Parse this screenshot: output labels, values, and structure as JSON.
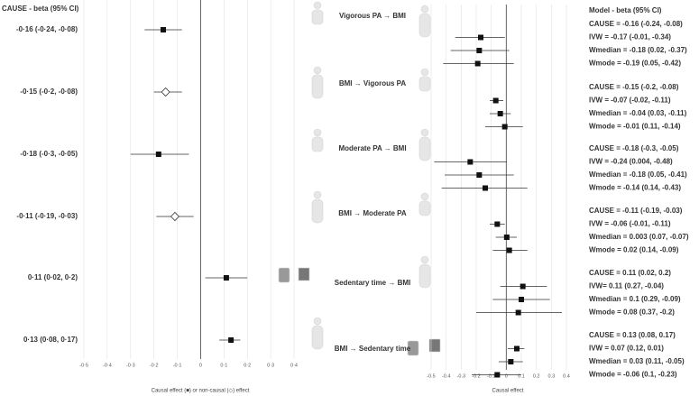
{
  "chart_data": [
    {
      "type": "forest",
      "title": "CAUSE - beta (95% CI)",
      "xlabel": "Causal effect (■) or non-causal (◇) effect",
      "xlim": [
        -0.5,
        0.4
      ],
      "xticks": [
        {
          "value": -0.5,
          "label": "-0·5"
        },
        {
          "value": -0.4,
          "label": "-0·4"
        },
        {
          "value": -0.3,
          "label": "-0·3"
        },
        {
          "value": -0.2,
          "label": "-0·2"
        },
        {
          "value": -0.1,
          "label": "-0·1"
        },
        0,
        {
          "value": 0.1,
          "label": "0·1"
        },
        {
          "value": 0.2,
          "label": "0·2"
        },
        {
          "value": 0.3,
          "label": "0·3"
        },
        {
          "value": 0.4,
          "label": "0·4"
        }
      ],
      "rows": [
        {
          "label": "-0·16 (-0·24, -0·08)",
          "estimate": -0.16,
          "ci": [
            -0.24,
            -0.08
          ],
          "causal": true
        },
        {
          "label": "-0·15 (-0·2, -0·08)",
          "estimate": -0.15,
          "ci": [
            -0.2,
            -0.08
          ],
          "causal": false
        },
        {
          "label": "-0·18 (-0·3, -0·05)",
          "estimate": -0.18,
          "ci": [
            -0.3,
            -0.05
          ],
          "causal": true
        },
        {
          "label": "-0·11 (-0·19, -0·03)",
          "estimate": -0.11,
          "ci": [
            -0.19,
            -0.03
          ],
          "causal": false
        },
        {
          "label": "0·11 (0·02, 0·2)",
          "estimate": 0.11,
          "ci": [
            0.02,
            0.2
          ],
          "causal": true
        },
        {
          "label": "0·13 (0·08, 0·17)",
          "estimate": 0.13,
          "ci": [
            0.08,
            0.17
          ],
          "causal": true
        }
      ]
    },
    {
      "type": "forest-grouped",
      "title": "Model - beta (95% CI)",
      "xlabel": "Causal effect",
      "xlim": [
        -0.5,
        0.4
      ],
      "xticks": [
        -0.5,
        -0.4,
        -0.3,
        -0.2,
        -0.1,
        0,
        0.1,
        0.2,
        0.3,
        0.4
      ],
      "groups": [
        {
          "name": "Vigorous PA → BMI",
          "cause_label": "CAUSE = -0.16 (-0.24, -0.08)",
          "rows": [
            {
              "label": "IVW = -0.17 (-0.01, -0.34)",
              "estimate": -0.17,
              "ci": [
                -0.01,
                -0.34
              ]
            },
            {
              "label": "Wmedian = -0.18 (0.02, -0.37)",
              "estimate": -0.18,
              "ci": [
                0.02,
                -0.37
              ]
            },
            {
              "label": "Wmode = -0.19 (0.05, -0.42)",
              "estimate": -0.19,
              "ci": [
                0.05,
                -0.42
              ]
            }
          ]
        },
        {
          "name": "BMI  → Vigorous PA",
          "cause_label": "CAUSE = -0.15 (-0.2, -0.08)",
          "rows": [
            {
              "label": "IVW = -0.07 (-0.02, -0.11)",
              "estimate": -0.07,
              "ci": [
                -0.02,
                -0.11
              ]
            },
            {
              "label": "Wmedian = -0.04 (0.03, -0.11)",
              "estimate": -0.04,
              "ci": [
                0.03,
                -0.11
              ]
            },
            {
              "label": "Wmode = -0.01 (0.11, -0.14)",
              "estimate": -0.01,
              "ci": [
                0.11,
                -0.14
              ]
            }
          ]
        },
        {
          "name": "Moderate PA → BMI",
          "cause_label": "CAUSE = -0.18 (-0.3, -0.05)",
          "rows": [
            {
              "label": "IVW = -0.24 (0.004, -0.48)",
              "estimate": -0.24,
              "ci": [
                0.004,
                -0.48
              ]
            },
            {
              "label": "Wmedian = -0.18 (0.05, -0.41)",
              "estimate": -0.18,
              "ci": [
                0.05,
                -0.41
              ]
            },
            {
              "label": "Wmode = -0.14 (0.14, -0.43)",
              "estimate": -0.14,
              "ci": [
                0.14,
                -0.43
              ]
            }
          ]
        },
        {
          "name": "BMI → Moderate PA",
          "cause_label": "CAUSE = -0.11 (-0.19, -0.03)",
          "rows": [
            {
              "label": "IVW = -0.06 (-0.01, -0.11)",
              "estimate": -0.06,
              "ci": [
                -0.01,
                -0.11
              ]
            },
            {
              "label": "Wmedian = 0.003 (0.07, -0.07)",
              "estimate": 0.003,
              "ci": [
                0.07,
                -0.07
              ]
            },
            {
              "label": "Wmode = 0.02 (0.14, -0.09)",
              "estimate": 0.02,
              "ci": [
                0.14,
                -0.09
              ]
            }
          ]
        },
        {
          "name": "Sedentary time → BMI",
          "cause_label": "CAUSE = 0.11 (0.02, 0.2)",
          "rows": [
            {
              "label": "IVW= 0.11 (0.27, -0.04)",
              "estimate": 0.11,
              "ci": [
                0.27,
                -0.04
              ]
            },
            {
              "label": "Wmedian = 0.1 (0.29, -0.09)",
              "estimate": 0.1,
              "ci": [
                0.29,
                -0.09
              ]
            },
            {
              "label": "Wmode = 0.08 (0.37, -0.2)",
              "estimate": 0.08,
              "ci": [
                0.37,
                -0.2
              ]
            }
          ]
        },
        {
          "name": "BMI → Sedentary time",
          "cause_label": "CAUSE = 0.13 (0.08, 0.17)",
          "rows": [
            {
              "label": "IVW = 0.07 (0.12, 0.01)",
              "estimate": 0.07,
              "ci": [
                0.12,
                0.01
              ]
            },
            {
              "label": "Wmedian = 0.03 (0.11, -0.05)",
              "estimate": 0.03,
              "ci": [
                0.11,
                -0.05
              ]
            },
            {
              "label": "Wmode = -0.06 (0.1, -0.23)",
              "estimate": -0.06,
              "ci": [
                0.1,
                -0.23
              ]
            }
          ]
        }
      ]
    }
  ]
}
